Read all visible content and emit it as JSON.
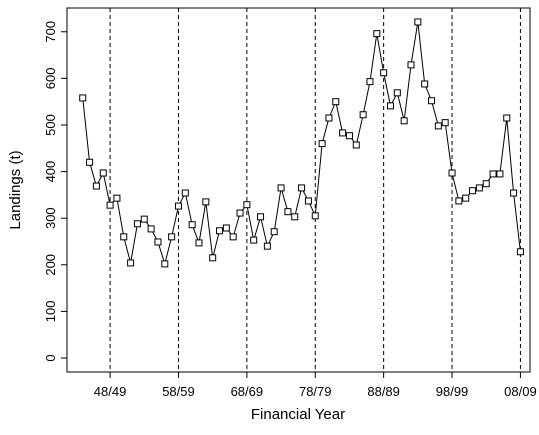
{
  "chart_data": {
    "type": "line",
    "x_label": "Financial Year",
    "y_label": "Landings (t)",
    "x": [
      1944,
      1945,
      1946,
      1947,
      1948,
      1949,
      1950,
      1951,
      1952,
      1953,
      1954,
      1955,
      1956,
      1957,
      1958,
      1959,
      1960,
      1961,
      1962,
      1963,
      1964,
      1965,
      1966,
      1967,
      1968,
      1969,
      1970,
      1971,
      1972,
      1973,
      1974,
      1975,
      1976,
      1977,
      1978,
      1979,
      1980,
      1981,
      1982,
      1983,
      1984,
      1985,
      1986,
      1987,
      1988,
      1989,
      1990,
      1991,
      1992,
      1993,
      1994,
      1995,
      1996,
      1997,
      1998,
      1999,
      2000,
      2001,
      2002,
      2003,
      2004,
      2005,
      2006,
      2007,
      2008
    ],
    "series": [
      {
        "name": "Landings",
        "color": "#000000",
        "values": [
          558,
          420,
          369,
          397,
          328,
          343,
          260,
          204,
          288,
          298,
          277,
          249,
          202,
          260,
          326,
          354,
          286,
          247,
          335,
          215,
          273,
          279,
          260,
          311,
          329,
          253,
          303,
          240,
          271,
          365,
          314,
          303,
          365,
          337,
          305,
          460,
          515,
          550,
          483,
          477,
          457,
          522,
          593,
          696,
          612,
          541,
          569,
          509,
          629,
          721,
          588,
          552,
          498,
          505,
          397,
          337,
          343,
          359,
          365,
          374,
          395,
          395,
          515,
          354,
          228
        ]
      }
    ],
    "xlim": [
      1941.7,
      2009.4
    ],
    "xticks": [
      {
        "value": 1948,
        "label": "48/49"
      },
      {
        "value": 1958,
        "label": "58/59"
      },
      {
        "value": 1968,
        "label": "68/69"
      },
      {
        "value": 1978,
        "label": "78/79"
      },
      {
        "value": 1988,
        "label": "88/89"
      },
      {
        "value": 1998,
        "label": "98/99"
      },
      {
        "value": 2008,
        "label": "08/09"
      }
    ],
    "ylim": [
      -30,
      751
    ],
    "yticks": [
      0,
      100,
      200,
      300,
      400,
      500,
      600,
      700
    ],
    "grid": true
  }
}
